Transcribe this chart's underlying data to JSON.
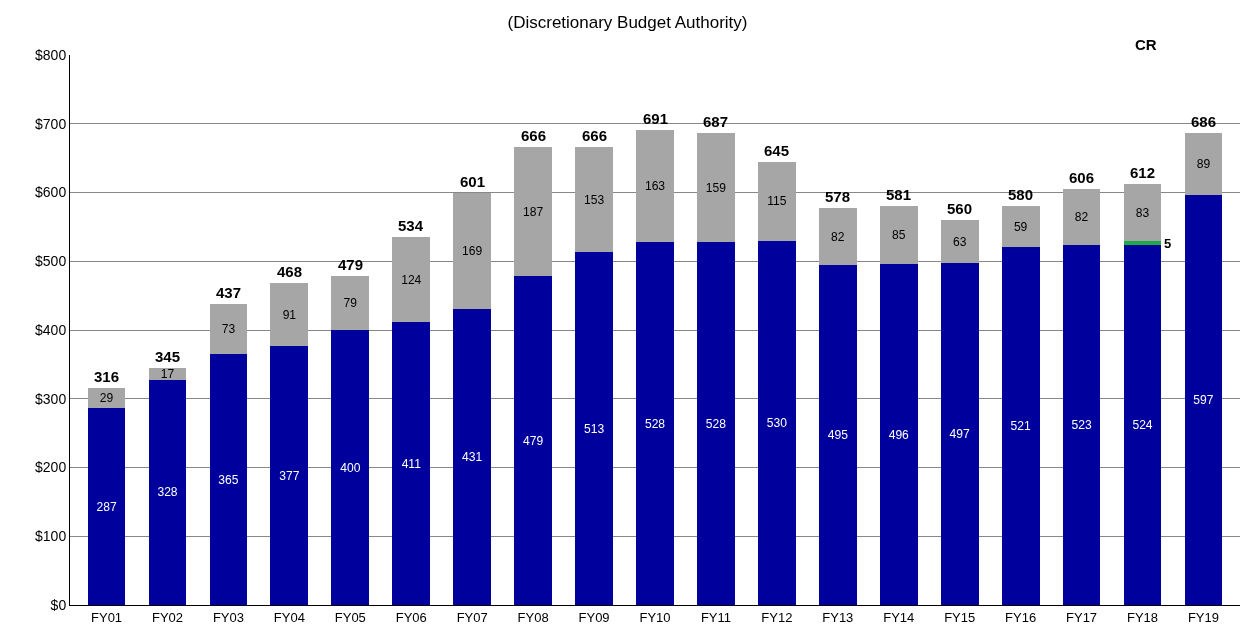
{
  "chart_data": {
    "type": "bar",
    "title": "(Discretionary Budget Authority)",
    "categories": [
      "FY01",
      "FY02",
      "FY03",
      "FY04",
      "FY05",
      "FY06",
      "FY07",
      "FY08",
      "FY09",
      "FY10",
      "FY11",
      "FY12",
      "FY13",
      "FY14",
      "FY15",
      "FY16",
      "FY17",
      "FY18",
      "FY19"
    ],
    "stacked": true,
    "series": [
      {
        "color": "#00009c",
        "values": [
          287,
          328,
          365,
          377,
          400,
          411,
          431,
          479,
          513,
          528,
          528,
          530,
          495,
          496,
          497,
          521,
          523,
          524,
          597
        ]
      },
      {
        "color": "#1faa4a",
        "values": [
          null,
          null,
          null,
          null,
          null,
          null,
          null,
          null,
          null,
          null,
          null,
          null,
          null,
          null,
          null,
          null,
          null,
          5,
          null
        ]
      },
      {
        "color": "#a6a6a6",
        "values": [
          29,
          17,
          73,
          91,
          79,
          124,
          169,
          187,
          153,
          163,
          159,
          115,
          82,
          85,
          63,
          59,
          82,
          83,
          89
        ]
      }
    ],
    "data_labels": true,
    "totals": [
      "316",
      "345",
      "437",
      "468",
      "479",
      "534",
      "601",
      "666",
      "666",
      "691",
      "687",
      "645",
      "578",
      "581",
      "560",
      "580",
      "606",
      "612",
      "686"
    ],
    "annotations": [
      "CR"
    ],
    "ylim": [
      0,
      800
    ],
    "yticks": [
      {
        "value": 0,
        "label": "$0"
      },
      {
        "value": 100,
        "label": "$100"
      },
      {
        "value": 200,
        "label": "$200"
      },
      {
        "value": 300,
        "label": "$300"
      },
      {
        "value": 400,
        "label": "$400"
      },
      {
        "value": 500,
        "label": "$500"
      },
      {
        "value": 600,
        "label": "$600"
      },
      {
        "value": 700,
        "label": "$700"
      },
      {
        "value": 800,
        "label": "$800"
      }
    ],
    "grid": "y"
  }
}
